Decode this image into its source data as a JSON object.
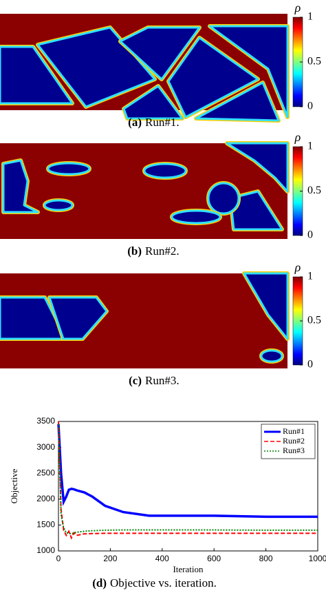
{
  "panels": [
    {
      "label": "(a)",
      "caption": "Run#1."
    },
    {
      "label": "(b)",
      "caption": "Run#2."
    },
    {
      "label": "(c)",
      "caption": "Run#3."
    }
  ],
  "colorbar": {
    "symbol": "ρ",
    "ticks": [
      0,
      0.5,
      1
    ]
  },
  "chart_data": {
    "type": "line",
    "caption_label": "(d)",
    "caption": "Objective vs. iteration.",
    "x_label": "Iteration",
    "y_label": "Objective",
    "x": [
      0,
      10,
      20,
      30,
      40,
      50,
      60,
      70,
      100,
      130,
      180,
      250,
      350,
      600,
      800,
      1000
    ],
    "series": [
      {
        "name": "Run#1",
        "color": "#0000ff",
        "line_style": "solid",
        "values": [
          3450,
          2500,
          1950,
          2050,
          2180,
          2200,
          2190,
          2170,
          2130,
          2050,
          1870,
          1750,
          1680,
          1680,
          1660,
          1660
        ]
      },
      {
        "name": "Run#2",
        "color": "#ff0000",
        "line_style": "dashed",
        "values": [
          3500,
          1800,
          1400,
          1300,
          1380,
          1250,
          1350,
          1300,
          1330,
          1335,
          1340,
          1340,
          1340,
          1340,
          1340,
          1340
        ]
      },
      {
        "name": "Run#3",
        "color": "#008000",
        "line_style": "dotted",
        "values": [
          3450,
          1700,
          1450,
          1350,
          1340,
          1330,
          1350,
          1360,
          1380,
          1390,
          1400,
          1405,
          1405,
          1405,
          1400,
          1400
        ]
      }
    ],
    "xlim": [
      0,
      1000
    ],
    "ylim": [
      1000,
      3500
    ],
    "xticks": [
      0,
      200,
      400,
      600,
      800,
      1000
    ],
    "yticks": [
      1000,
      1500,
      2000,
      2500,
      3000,
      3500
    ],
    "legend": "upper right"
  }
}
